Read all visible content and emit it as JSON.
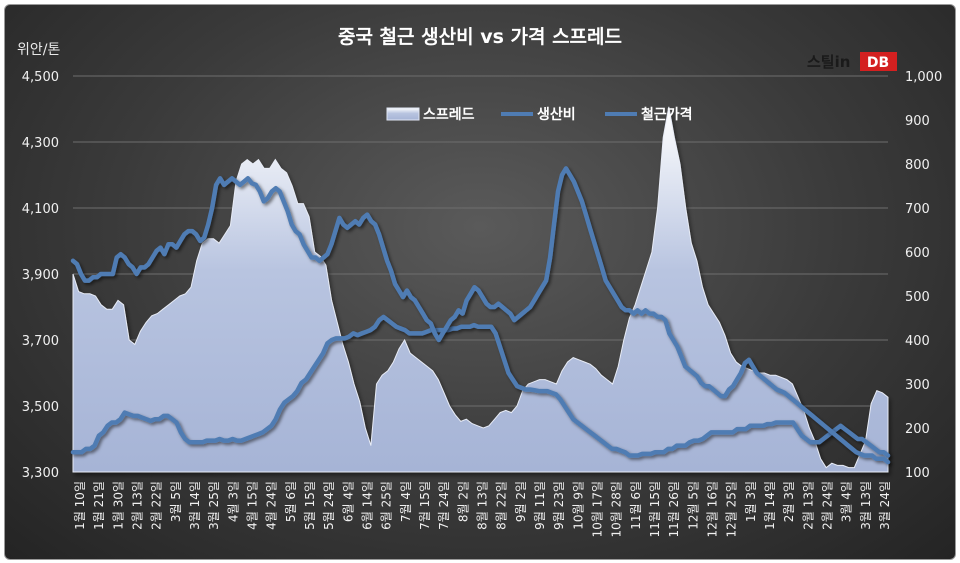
{
  "chart_data": {
    "type": "line",
    "title": "중국 철근 생산비 vs 가격 스프레드",
    "y_left_label": "위안/톤",
    "brand": {
      "name": "스틸in DB",
      "left": "스틸in",
      "right": "DB"
    },
    "y_left": {
      "min": 3300,
      "max": 4500,
      "ticks": [
        "3,300",
        "3,500",
        "3,700",
        "3,900",
        "4,100",
        "4,300",
        "4,500"
      ]
    },
    "y_right": {
      "min": 100,
      "max": 1000,
      "ticks": [
        "100",
        "200",
        "300",
        "400",
        "500",
        "600",
        "700",
        "800",
        "900",
        "1,000"
      ]
    },
    "grid": true,
    "legend_position": "top-center",
    "x_tick_labels": [
      "1월 10일",
      "1월 21일",
      "1월 30일",
      "2월 13일",
      "2월 22일",
      "3월 5일",
      "3월 14일",
      "3월 25일",
      "4월 3일",
      "4월 15일",
      "4월 24일",
      "5월 6일",
      "5월 15일",
      "5월 24일",
      "6월 4일",
      "6월 14일",
      "6월 25일",
      "7월 4일",
      "7월 15일",
      "7월 24일",
      "8월 2일",
      "8월 13일",
      "8월 22일",
      "9월 2일",
      "9월 11일",
      "9월 23일",
      "10월 9일",
      "10월 17일",
      "10월 28일",
      "11월 6일",
      "11월 15일",
      "11월 26일",
      "12월 5일",
      "12월 16일",
      "12월 25일",
      "1월 3일",
      "1월 14일",
      "2월 3일",
      "2월 13일",
      "2월 24일",
      "3월 4일",
      "3월 13일",
      "3월 24일"
    ],
    "series": [
      {
        "name": "스프레드",
        "axis": "right",
        "kind": "area",
        "color": "#b3bfdc",
        "values": [
          550,
          510,
          505,
          505,
          500,
          480,
          470,
          470,
          490,
          480,
          400,
          390,
          420,
          440,
          455,
          460,
          470,
          480,
          490,
          500,
          505,
          520,
          580,
          620,
          630,
          630,
          620,
          640,
          660,
          760,
          800,
          810,
          800,
          810,
          790,
          790,
          810,
          790,
          780,
          750,
          710,
          710,
          680,
          600,
          590,
          570,
          490,
          440,
          390,
          350,
          300,
          260,
          200,
          160,
          300,
          320,
          330,
          350,
          380,
          400,
          370,
          360,
          350,
          340,
          330,
          310,
          280,
          250,
          230,
          215,
          220,
          210,
          205,
          200,
          205,
          220,
          235,
          240,
          235,
          250,
          285,
          300,
          305,
          310,
          310,
          305,
          300,
          330,
          350,
          360,
          355,
          350,
          345,
          335,
          320,
          310,
          300,
          340,
          400,
          450,
          480,
          520,
          560,
          600,
          700,
          860,
          930,
          860,
          800,
          700,
          620,
          580,
          520,
          480,
          460,
          440,
          410,
          370,
          350,
          340,
          335,
          330,
          325,
          325,
          320,
          320,
          315,
          310,
          300,
          270,
          240,
          200,
          170,
          130,
          110,
          120,
          115,
          115,
          110,
          110,
          140,
          170,
          255,
          285,
          280,
          270
        ]
      },
      {
        "name": "생산비",
        "axis": "left",
        "kind": "line",
        "color": "#4f7cb3",
        "values": [
          3360,
          3360,
          3360,
          3370,
          3370,
          3380,
          3410,
          3420,
          3440,
          3450,
          3450,
          3460,
          3480,
          3475,
          3470,
          3470,
          3465,
          3460,
          3455,
          3460,
          3460,
          3470,
          3470,
          3460,
          3450,
          3420,
          3400,
          3390,
          3390,
          3390,
          3390,
          3395,
          3395,
          3395,
          3400,
          3395,
          3395,
          3400,
          3395,
          3395,
          3400,
          3405,
          3410,
          3415,
          3420,
          3430,
          3440,
          3460,
          3490,
          3510,
          3520,
          3530,
          3545,
          3570,
          3580,
          3600,
          3620,
          3640,
          3660,
          3690,
          3700,
          3705,
          3705,
          3705,
          3710,
          3720,
          3715,
          3720,
          3725,
          3730,
          3740,
          3760,
          3770,
          3760,
          3750,
          3740,
          3735,
          3730,
          3720,
          3720,
          3720,
          3720,
          3725,
          3730,
          3730,
          3730,
          3730,
          3730,
          3735,
          3735,
          3740,
          3740,
          3740,
          3745,
          3740,
          3740,
          3740,
          3740,
          3720,
          3680,
          3640,
          3600,
          3580,
          3560,
          3555,
          3550,
          3550,
          3548,
          3545,
          3545,
          3545,
          3540,
          3535,
          3520,
          3500,
          3480,
          3460,
          3450,
          3440,
          3430,
          3420,
          3410,
          3400,
          3390,
          3380,
          3370,
          3370,
          3365,
          3360,
          3350,
          3350,
          3350,
          3355,
          3355,
          3355,
          3360,
          3360,
          3360,
          3370,
          3370,
          3380,
          3380,
          3380,
          3390,
          3395,
          3395,
          3400,
          3410,
          3420,
          3420,
          3420,
          3420,
          3420,
          3420,
          3430,
          3430,
          3430,
          3440,
          3440,
          3440,
          3440,
          3445,
          3445,
          3450,
          3450,
          3450,
          3450,
          3450,
          3430,
          3410,
          3400,
          3390,
          3390,
          3390,
          3400,
          3410,
          3420,
          3430,
          3440,
          3430,
          3420,
          3410,
          3400,
          3400,
          3390,
          3380,
          3370,
          3360,
          3360,
          3350
        ]
      },
      {
        "name": "철근가격",
        "axis": "left",
        "kind": "line",
        "color": "#4f7cb3",
        "values": [
          3940,
          3930,
          3900,
          3880,
          3880,
          3890,
          3890,
          3900,
          3900,
          3900,
          3900,
          3950,
          3960,
          3950,
          3930,
          3920,
          3900,
          3920,
          3920,
          3930,
          3950,
          3970,
          3980,
          3960,
          3990,
          3990,
          3980,
          4000,
          4020,
          4030,
          4030,
          4020,
          4000,
          4010,
          4050,
          4100,
          4170,
          4190,
          4170,
          4180,
          4190,
          4180,
          4170,
          4180,
          4190,
          4175,
          4170,
          4150,
          4120,
          4130,
          4150,
          4160,
          4150,
          4120,
          4090,
          4050,
          4030,
          4020,
          3990,
          3970,
          3950,
          3950,
          3940,
          3950,
          3960,
          3990,
          4030,
          4070,
          4050,
          4040,
          4050,
          4060,
          4050,
          4070,
          4080,
          4060,
          4050,
          4020,
          3980,
          3940,
          3910,
          3870,
          3850,
          3830,
          3850,
          3830,
          3820,
          3800,
          3780,
          3760,
          3750,
          3720,
          3700,
          3720,
          3740,
          3760,
          3770,
          3790,
          3780,
          3820,
          3840,
          3860,
          3850,
          3830,
          3810,
          3800,
          3800,
          3810,
          3800,
          3790,
          3780,
          3760,
          3770,
          3780,
          3790,
          3800,
          3820,
          3840,
          3860,
          3880,
          3950,
          4050,
          4150,
          4200,
          4220,
          4200,
          4180,
          4150,
          4120,
          4080,
          4040,
          4000,
          3960,
          3920,
          3880,
          3860,
          3840,
          3820,
          3800,
          3790,
          3790,
          3780,
          3790,
          3780,
          3790,
          3780,
          3780,
          3770,
          3770,
          3760,
          3720,
          3700,
          3680,
          3650,
          3620,
          3610,
          3600,
          3590,
          3570,
          3560,
          3560,
          3550,
          3540,
          3530,
          3530,
          3550,
          3560,
          3580,
          3600,
          3630,
          3640,
          3620,
          3600,
          3590,
          3580,
          3570,
          3560,
          3550,
          3545,
          3540,
          3530,
          3520,
          3510,
          3500,
          3490,
          3480,
          3470,
          3460,
          3450,
          3440,
          3430,
          3420,
          3410,
          3400,
          3390,
          3380,
          3370,
          3360,
          3355,
          3350,
          3350,
          3350,
          3340,
          3340,
          3340,
          3330
        ]
      }
    ]
  }
}
